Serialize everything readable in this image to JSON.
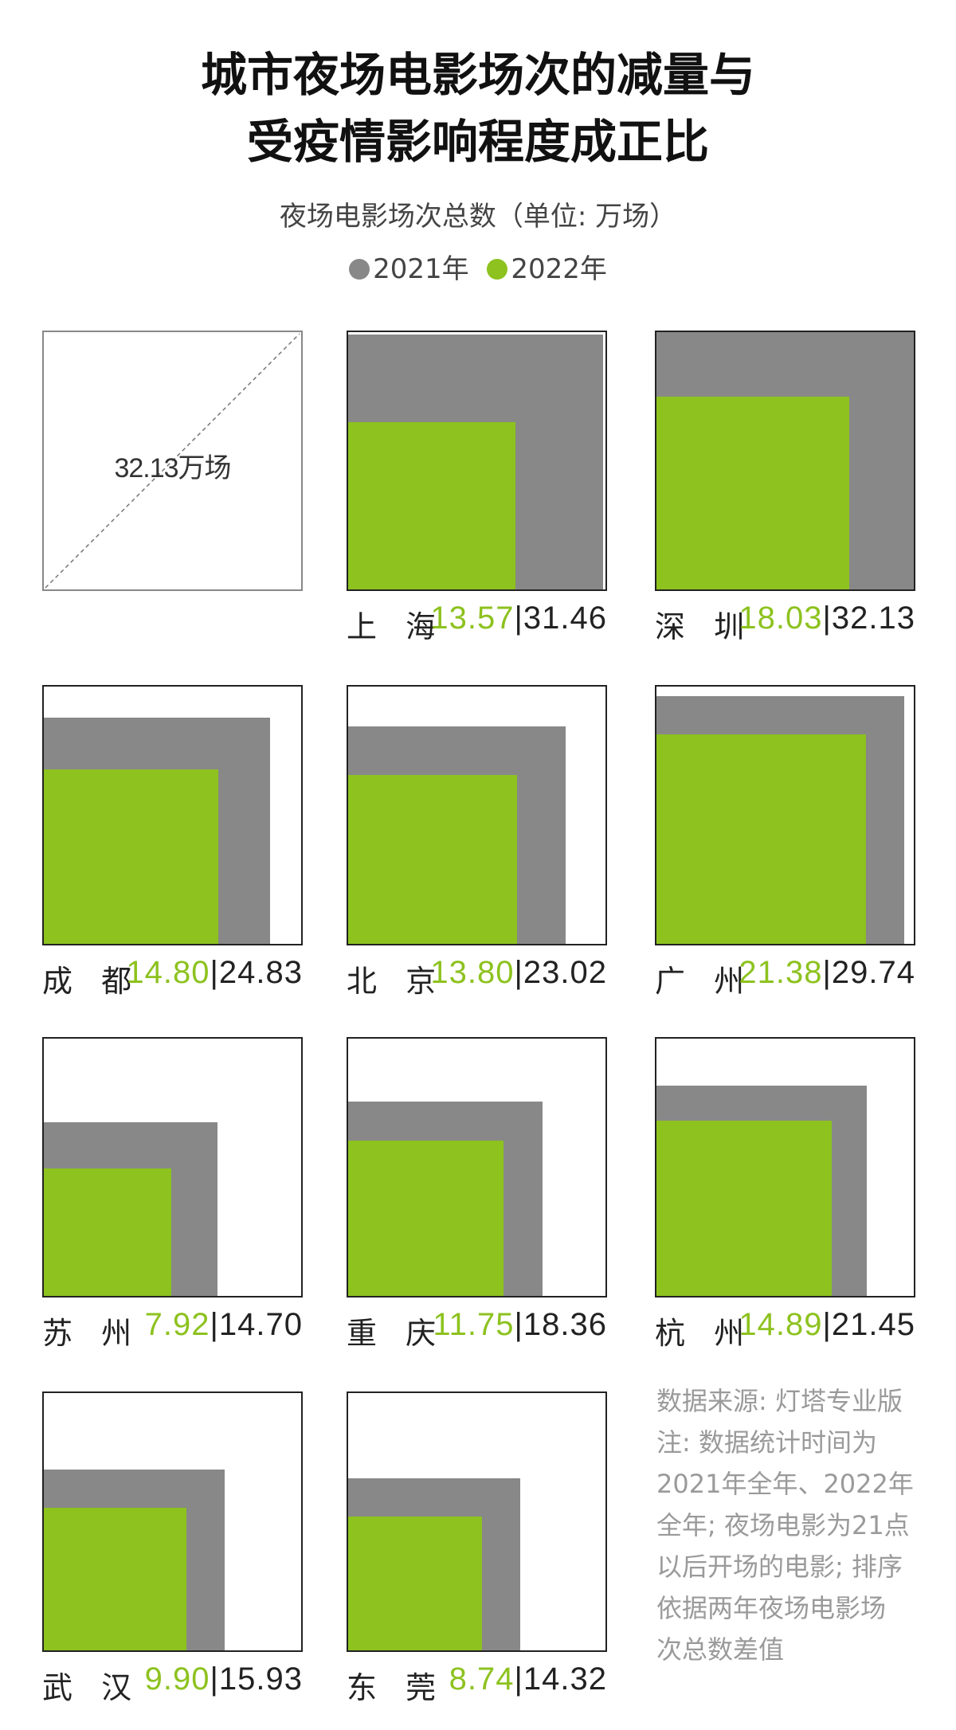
{
  "title_lines": [
    "城市夜场电影场次的减量与",
    "受疫情影响程度成正比"
  ],
  "subtitle": "夜场电影场次总数（单位: 万场）",
  "legend": [
    {
      "label": "2021年",
      "color": "#888888"
    },
    {
      "label": "2022年",
      "color": "#8dc21f"
    }
  ],
  "reference": {
    "label": "32.13万场",
    "value": 32.13
  },
  "colors": {
    "y2021": "#888888",
    "y2022": "#8dc21f",
    "frame": "#222222"
  },
  "chart_data": {
    "type": "bar",
    "title": "城市夜场电影场次的减量与受疫情影响程度成正比",
    "subtitle": "夜场电影场次总数（单位: 万场）",
    "unit": "万场",
    "reference_max": 32.13,
    "categories": [
      "上海",
      "深圳",
      "成都",
      "北京",
      "广州",
      "苏州",
      "重庆",
      "杭州",
      "武汉",
      "东莞"
    ],
    "series": [
      {
        "name": "2021年",
        "values": [
          31.46,
          32.13,
          24.83,
          23.02,
          29.74,
          14.7,
          18.36,
          21.45,
          15.93,
          14.32
        ]
      },
      {
        "name": "2022年",
        "values": [
          13.57,
          18.03,
          14.8,
          13.8,
          21.38,
          7.92,
          11.75,
          14.89,
          9.9,
          8.74
        ]
      }
    ],
    "cities": [
      {
        "name": "上 海",
        "v2022": "13.57",
        "v2021": "31.46"
      },
      {
        "name": "深 圳",
        "v2022": "18.03",
        "v2021": "32.13"
      },
      {
        "name": "成 都",
        "v2022": "14.80",
        "v2021": "24.83"
      },
      {
        "name": "北 京",
        "v2022": "13.80",
        "v2021": "23.02"
      },
      {
        "name": "广 州",
        "v2022": "21.38",
        "v2021": "29.74"
      },
      {
        "name": "苏 州",
        "v2022": "7.92",
        "v2021": "14.70"
      },
      {
        "name": "重 庆",
        "v2022": "11.75",
        "v2021": "18.36"
      },
      {
        "name": "杭 州",
        "v2022": "14.89",
        "v2021": "21.45"
      },
      {
        "name": "武 汉",
        "v2022": "9.90",
        "v2021": "15.93"
      },
      {
        "name": "东 莞",
        "v2022": "8.74",
        "v2021": "14.32"
      }
    ]
  },
  "notes": [
    "数据来源: 灯塔专业版",
    "注: 数据统计时间为",
    "2021年全年、2022年",
    "全年; 夜场电影为21点",
    "以后开场的电影; 排序",
    "依据两年夜场电影场",
    "次总数差值"
  ]
}
